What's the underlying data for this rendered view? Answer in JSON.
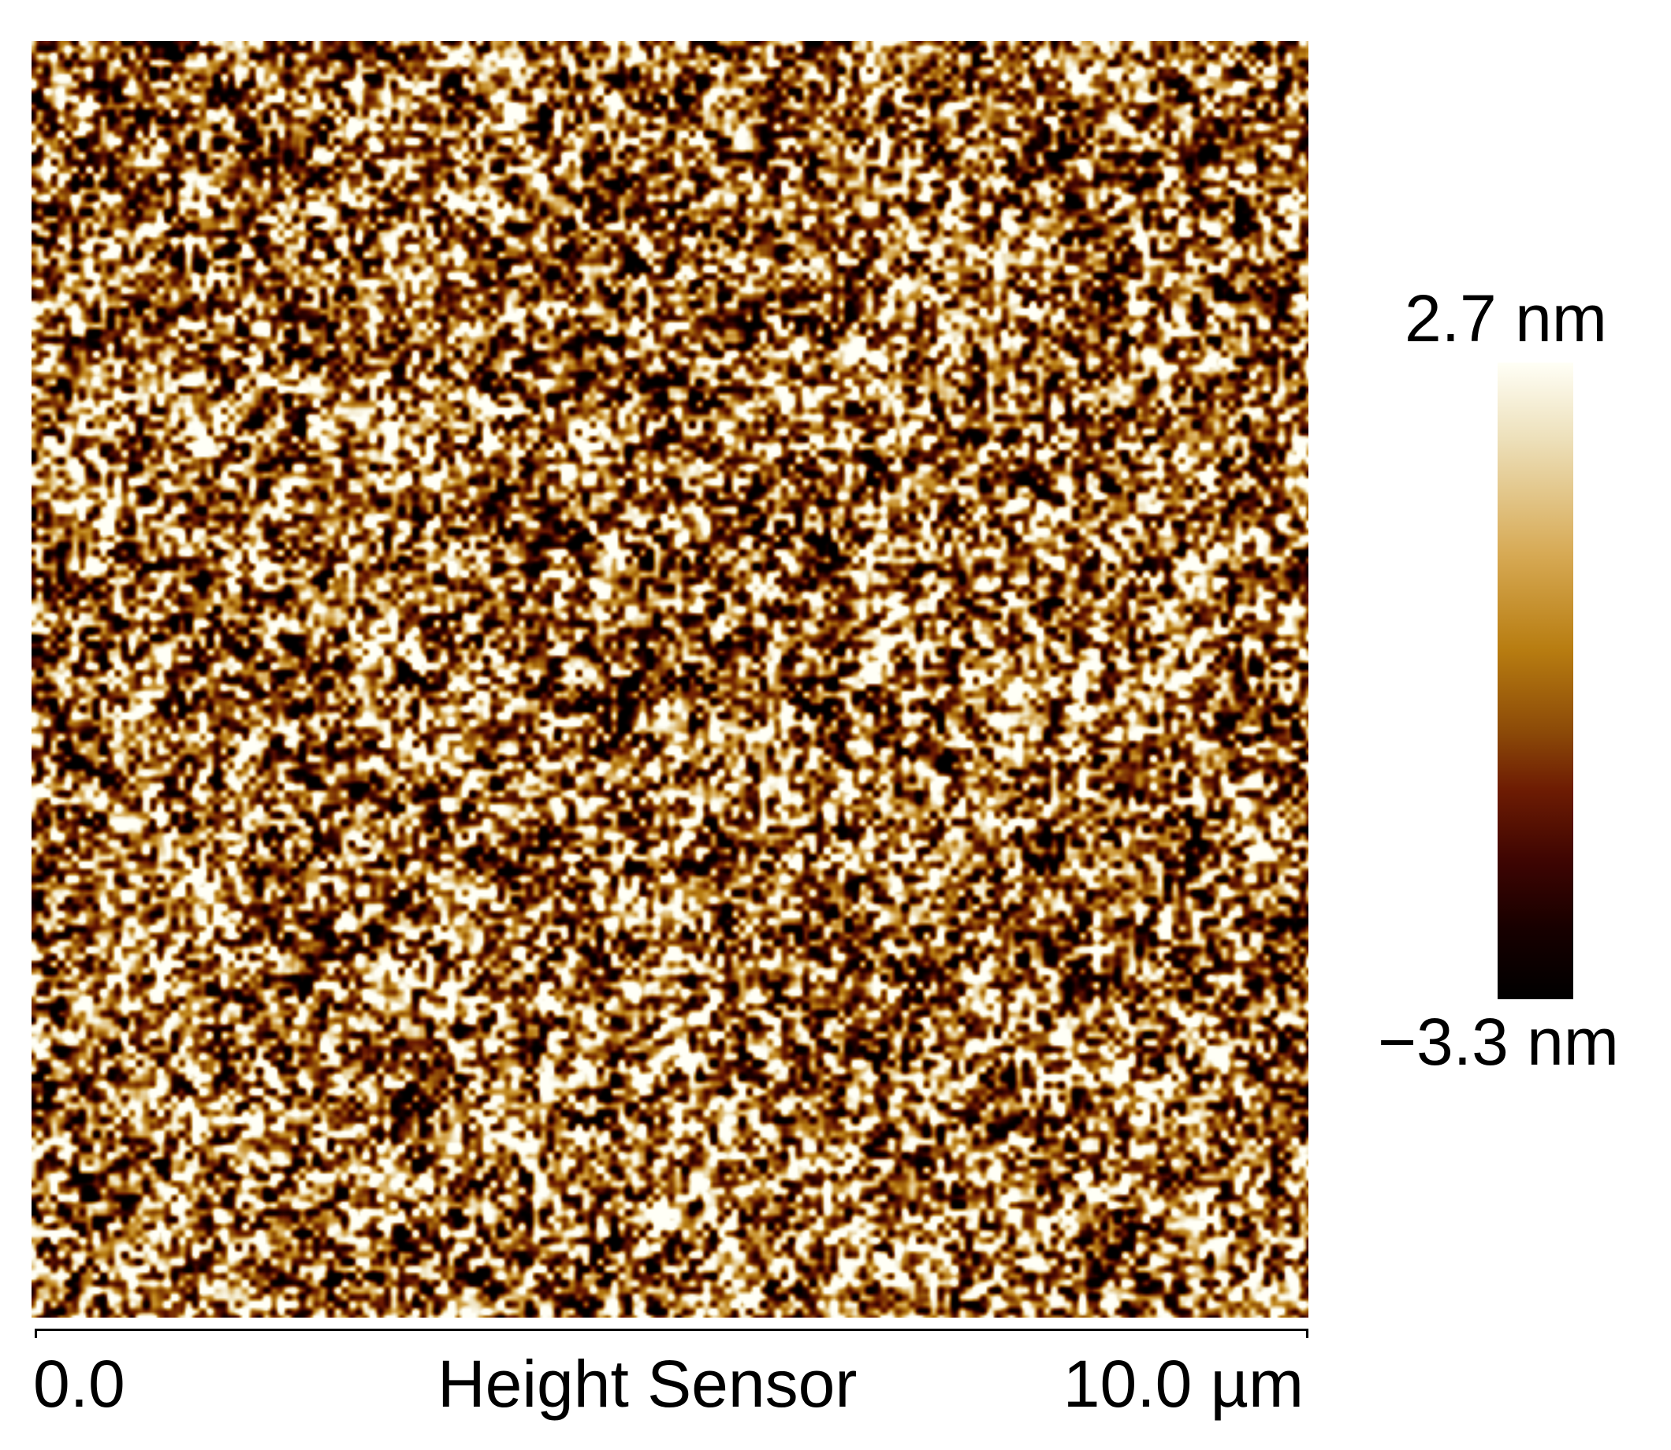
{
  "image": {
    "type": "AFM height map",
    "colormap": [
      "#000000",
      "#170000",
      "#3f0502",
      "#6e1c03",
      "#8c4a08",
      "#b87d11",
      "#d7aa55",
      "#ede0ba",
      "#fffff6"
    ],
    "texture": "granular dark-copper to pale-gold speckle"
  },
  "scale_axis": {
    "start_label": "0.0",
    "title": "Height Sensor",
    "end_label": "10.0 µm"
  },
  "colorbar": {
    "max_label": "2.7 nm",
    "min_label": "−3.3 nm"
  }
}
